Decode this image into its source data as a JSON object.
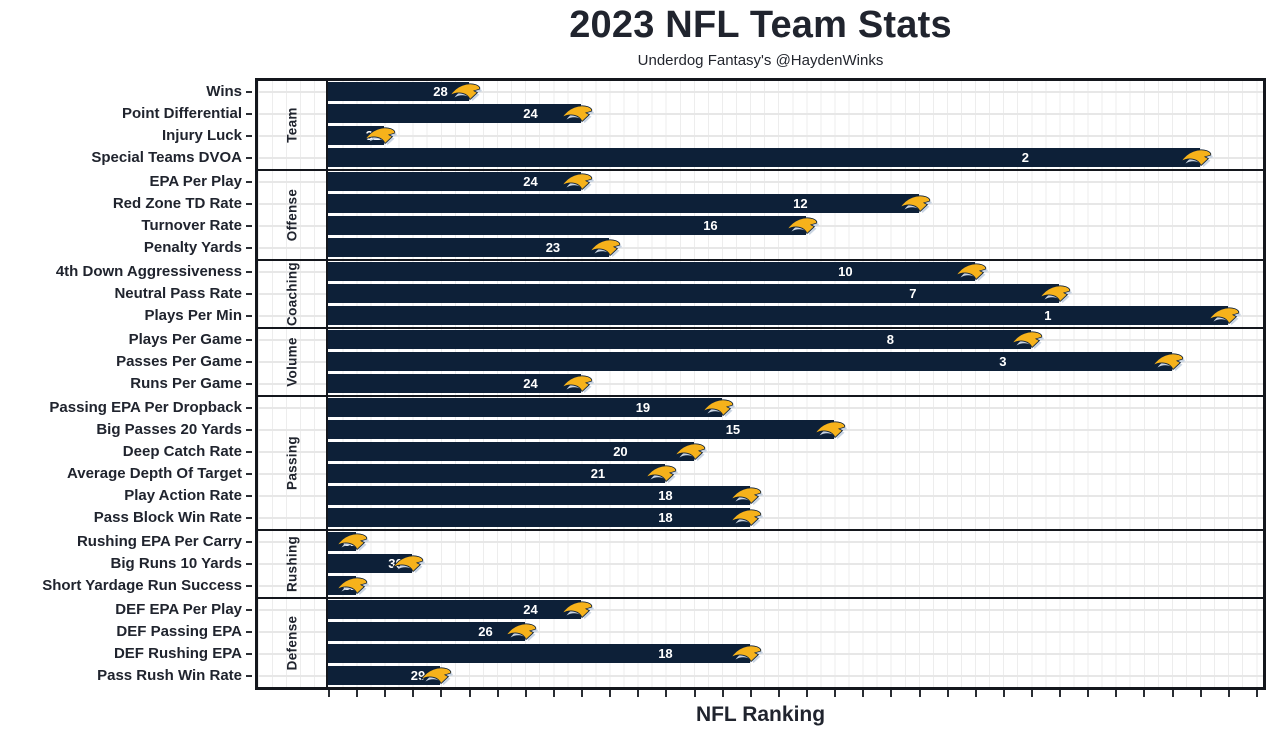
{
  "chart_data": {
    "type": "bar",
    "orientation": "horizontal",
    "title": "2023 NFL Team Stats",
    "subtitle": "Underdog Fantasy's @HaydenWinks",
    "xlabel": "NFL Ranking",
    "x_axis": {
      "min": 0,
      "max": 33.25,
      "tick_interval": 1,
      "tick_labels_visible": false,
      "ticks_from": 0,
      "ticks_to": 33
    },
    "bar_length_rule": "bar length = 33 - rank, so rank 1 is the longest bar",
    "value_label_position_fraction": 0.8,
    "bar_end_icon": "chargers-lightning-bolt",
    "grid": "light gray minor grid, horizontal line at each row center",
    "legend": null,
    "groups": [
      {
        "name": "Team",
        "metrics": [
          {
            "label": "Wins",
            "rank": 28
          },
          {
            "label": "Point Differential",
            "rank": 24
          },
          {
            "label": "Injury Luck",
            "rank": 31
          },
          {
            "label": "Special Teams DVOA",
            "rank": 2
          }
        ]
      },
      {
        "name": "Offense",
        "metrics": [
          {
            "label": "EPA Per Play",
            "rank": 24
          },
          {
            "label": "Red Zone TD Rate",
            "rank": 12
          },
          {
            "label": "Turnover Rate",
            "rank": 16
          },
          {
            "label": "Penalty Yards",
            "rank": 23
          }
        ]
      },
      {
        "name": "Coaching",
        "metrics": [
          {
            "label": "4th Down Aggressiveness",
            "rank": 10
          },
          {
            "label": "Neutral Pass Rate",
            "rank": 7
          },
          {
            "label": "Plays Per Min",
            "rank": 1
          }
        ]
      },
      {
        "name": "Volume",
        "metrics": [
          {
            "label": "Plays Per Game",
            "rank": 8
          },
          {
            "label": "Passes Per Game",
            "rank": 3
          },
          {
            "label": "Runs Per Game",
            "rank": 24
          }
        ]
      },
      {
        "name": "Passing",
        "metrics": [
          {
            "label": "Passing EPA Per Dropback",
            "rank": 19
          },
          {
            "label": "Big Passes 20 Yards",
            "rank": 15
          },
          {
            "label": "Deep Catch Rate",
            "rank": 20
          },
          {
            "label": "Average Depth Of Target",
            "rank": 21
          },
          {
            "label": "Play Action Rate",
            "rank": 18
          },
          {
            "label": "Pass Block Win Rate",
            "rank": 18
          }
        ]
      },
      {
        "name": "Rushing",
        "metrics": [
          {
            "label": "Rushing EPA Per Carry",
            "rank": 32
          },
          {
            "label": "Big Runs 10 Yards",
            "rank": 30
          },
          {
            "label": "Short Yardage Run Success",
            "rank": 32
          }
        ]
      },
      {
        "name": "Defense",
        "metrics": [
          {
            "label": "DEF EPA Per Play",
            "rank": 24
          },
          {
            "label": "DEF Passing EPA",
            "rank": 26
          },
          {
            "label": "DEF Rushing EPA",
            "rank": 18
          },
          {
            "label": "Pass Rush Win Rate",
            "rank": 29
          }
        ]
      }
    ],
    "colors": {
      "bar_navy": "#0d2038",
      "bolt_gold": "#f6b21b",
      "bolt_trim_silver": "#c9d4e2",
      "panel_border": "#14171d",
      "grid_line": "#e9e9e9",
      "text": "#20242e",
      "value_label": "#ffffff",
      "background": "#ffffff"
    }
  }
}
